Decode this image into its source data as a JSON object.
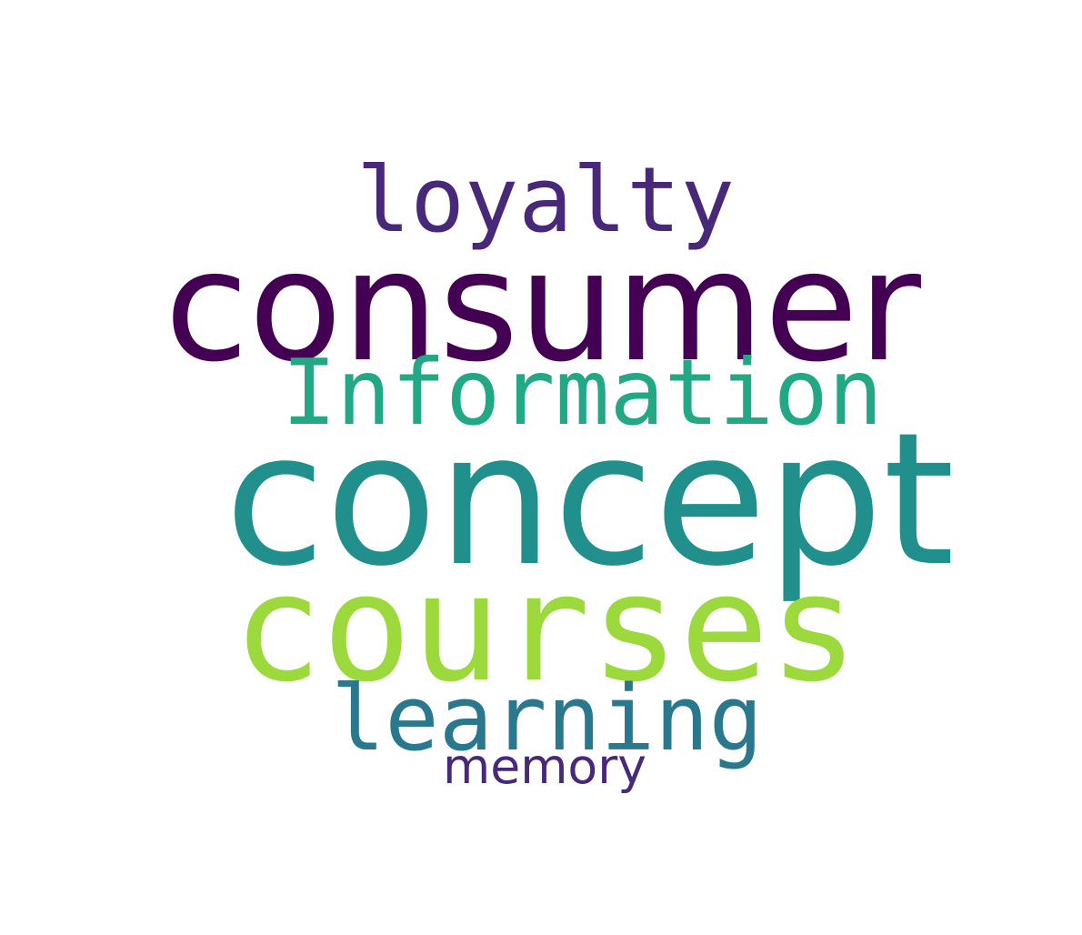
{
  "words": [
    {
      "key": "consumer",
      "text": "consumer",
      "color": "#440154"
    },
    {
      "key": "concept",
      "text": "concept",
      "color": "#21908c"
    },
    {
      "key": "courses",
      "text": "courses",
      "color": "#9bd93c"
    },
    {
      "key": "information",
      "text": "Information",
      "color": "#22a884"
    },
    {
      "key": "learning",
      "text": "learning",
      "color": "#2a788e"
    },
    {
      "key": "loyalty",
      "text": "loyalty",
      "color": "#482878"
    },
    {
      "key": "memory",
      "text": "memory",
      "color": "#482878"
    }
  ]
}
